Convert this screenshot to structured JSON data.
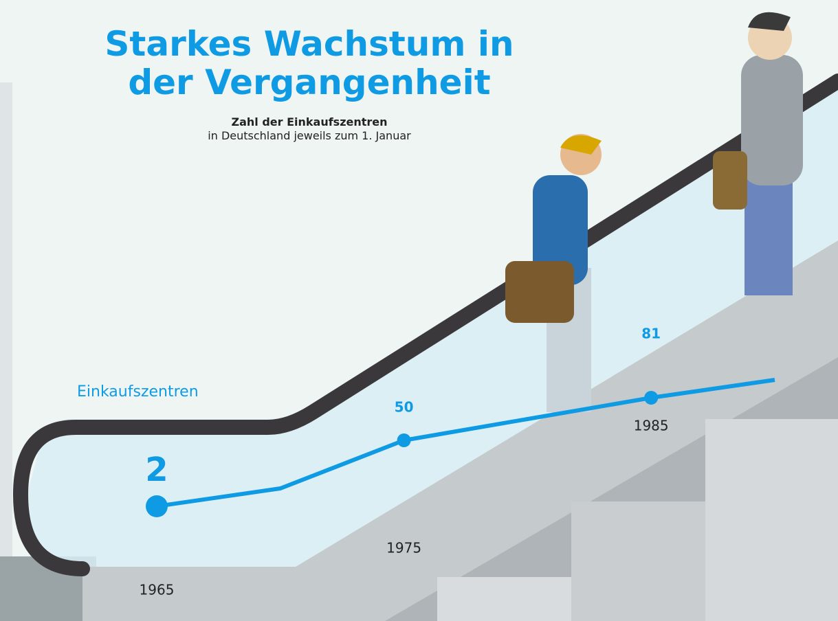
{
  "chart_data": {
    "type": "line",
    "title": "Starkes Wachstum in der Vergangenheit",
    "subtitle": "Zahl der Einkaufszentren",
    "note": "in Deutschland jeweils zum 1. Januar",
    "x": [
      1965,
      1970,
      1975,
      1985,
      1990
    ],
    "xticks": [
      1965,
      1975,
      1985
    ],
    "series": [
      {
        "name": "Einkaufszentren",
        "color": "#0f9be3",
        "values": [
          2,
          15,
          50,
          81,
          94
        ],
        "value_labels": [
          "2",
          null,
          "50",
          "81",
          null
        ]
      }
    ]
  }
}
